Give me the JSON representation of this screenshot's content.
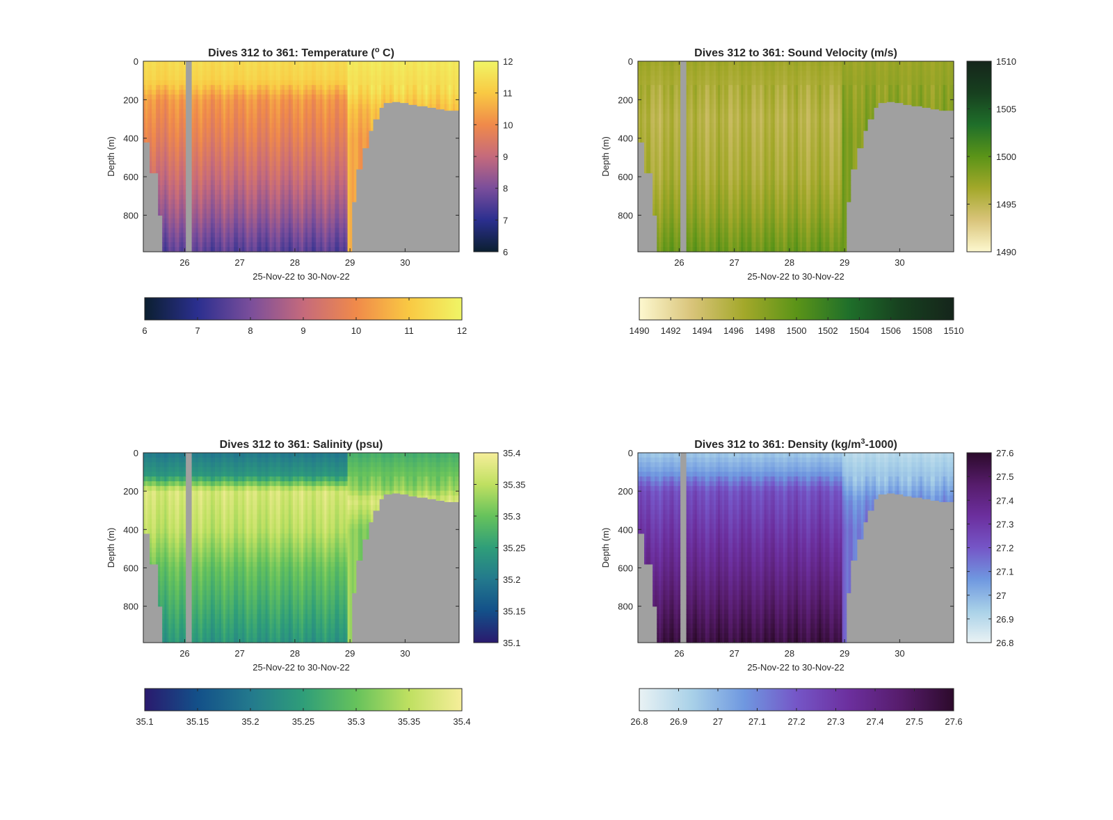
{
  "figure": {
    "background": "#ffffff",
    "mask_color": "#a0a0a0"
  },
  "chart_data": [
    {
      "type": "heatmap",
      "variable": "temperature",
      "title_parts": [
        {
          "text": "Dives 312 to 361: Temperature ("
        },
        {
          "text": "o",
          "sup": true
        },
        {
          "text": " C)"
        }
      ],
      "xlabel": "25-Nov-22 to 30-Nov-22",
      "ylabel": "Depth (m)",
      "x_range": [
        25.25,
        30.98
      ],
      "y_range": [
        0,
        990
      ],
      "x_ticks": [
        26,
        27,
        28,
        29,
        30
      ],
      "y_ticks": [
        0,
        200,
        400,
        600,
        800
      ],
      "clim": [
        6,
        12
      ],
      "colormap": [
        "#0b1f30",
        "#2b2f8f",
        "#7a4e9b",
        "#c56a7c",
        "#f08a4a",
        "#f9c943",
        "#f0f566"
      ],
      "right_colorbar_ticks": [
        6,
        7,
        8,
        9,
        10,
        11,
        12
      ],
      "bottom_colorbar_ticks": [
        6,
        7,
        8,
        9,
        10,
        11,
        12
      ],
      "profile": [
        {
          "z": 0,
          "v": 11.4
        },
        {
          "z": 100,
          "v": 11.2
        },
        {
          "z": 200,
          "v": 10.2
        },
        {
          "z": 400,
          "v": 9.7
        },
        {
          "z": 600,
          "v": 9.1
        },
        {
          "z": 800,
          "v": 8.4
        },
        {
          "z": 980,
          "v": 7.6
        }
      ],
      "late_profile": [
        {
          "z": 0,
          "v": 11.7
        },
        {
          "z": 150,
          "v": 11.4
        },
        {
          "z": 250,
          "v": 10.8
        },
        {
          "z": 400,
          "v": 10.4
        }
      ]
    },
    {
      "type": "heatmap",
      "variable": "sound_velocity",
      "title_parts": [
        {
          "text": "Dives 312 to 361: Sound Velocity (m/s)"
        }
      ],
      "xlabel": "25-Nov-22 to 30-Nov-22",
      "ylabel": "Depth (m)",
      "x_range": [
        25.25,
        30.98
      ],
      "y_range": [
        0,
        990
      ],
      "x_ticks": [
        26,
        27,
        28,
        29,
        30
      ],
      "y_ticks": [
        0,
        200,
        400,
        600,
        800
      ],
      "clim": [
        1490,
        1510
      ],
      "colormap": [
        "#fdf8cf",
        "#d9c47a",
        "#a3a82a",
        "#5b9418",
        "#1f6f2a",
        "#17401f",
        "#15251b"
      ],
      "right_colorbar_ticks": [
        1490,
        1495,
        1500,
        1505,
        1510
      ],
      "bottom_colorbar_ticks": [
        1490,
        1492,
        1494,
        1496,
        1498,
        1500,
        1502,
        1504,
        1506,
        1508,
        1510
      ],
      "profile": [
        {
          "z": 0,
          "v": 1496.8
        },
        {
          "z": 150,
          "v": 1496.0
        },
        {
          "z": 300,
          "v": 1495.4
        },
        {
          "z": 600,
          "v": 1496.2
        },
        {
          "z": 800,
          "v": 1497.5
        },
        {
          "z": 980,
          "v": 1499.2
        }
      ],
      "late_profile": [
        {
          "z": 0,
          "v": 1497.0
        },
        {
          "z": 200,
          "v": 1497.6
        },
        {
          "z": 400,
          "v": 1498.2
        }
      ]
    },
    {
      "type": "heatmap",
      "variable": "salinity",
      "title_parts": [
        {
          "text": "Dives 312 to 361: Salinity (psu)"
        }
      ],
      "xlabel": "25-Nov-22 to 30-Nov-22",
      "ylabel": "Depth (m)",
      "x_range": [
        25.25,
        30.98
      ],
      "y_range": [
        0,
        990
      ],
      "x_ticks": [
        26,
        27,
        28,
        29,
        30
      ],
      "y_ticks": [
        0,
        200,
        400,
        600,
        800
      ],
      "clim": [
        35.1,
        35.4
      ],
      "colormap": [
        "#2a1a6e",
        "#135089",
        "#23798d",
        "#2f9e79",
        "#66c25c",
        "#bfe061",
        "#f6ee9a"
      ],
      "right_colorbar_ticks": [
        35.1,
        35.15,
        35.2,
        35.25,
        35.3,
        35.35,
        35.4
      ],
      "bottom_colorbar_ticks": [
        35.1,
        35.15,
        35.2,
        35.25,
        35.3,
        35.35,
        35.4
      ],
      "profile": [
        {
          "z": 0,
          "v": 35.2
        },
        {
          "z": 120,
          "v": 35.24
        },
        {
          "z": 200,
          "v": 35.37
        },
        {
          "z": 400,
          "v": 35.35
        },
        {
          "z": 600,
          "v": 35.3
        },
        {
          "z": 800,
          "v": 35.27
        },
        {
          "z": 980,
          "v": 35.24
        }
      ],
      "late_profile": [
        {
          "z": 0,
          "v": 35.27
        },
        {
          "z": 180,
          "v": 35.32
        },
        {
          "z": 250,
          "v": 35.37
        },
        {
          "z": 400,
          "v": 35.32
        }
      ]
    },
    {
      "type": "heatmap",
      "variable": "density",
      "title_parts": [
        {
          "text": "Dives 312 to 361: Density (kg/m"
        },
        {
          "text": "3",
          "sup": true
        },
        {
          "text": "-1000)"
        }
      ],
      "xlabel": "25-Nov-22 to 30-Nov-22",
      "ylabel": "Depth (m)",
      "x_range": [
        25.25,
        30.98
      ],
      "y_range": [
        0,
        990
      ],
      "x_ticks": [
        26,
        27,
        28,
        29,
        30
      ],
      "y_ticks": [
        0,
        200,
        400,
        600,
        800
      ],
      "clim": [
        26.8,
        27.6
      ],
      "colormap": [
        "#e9f2f4",
        "#a9d1e8",
        "#6f98e0",
        "#7556c7",
        "#6c2f9e",
        "#561c6b",
        "#2c0a2b"
      ],
      "right_colorbar_ticks": [
        27.6,
        27.5,
        27.4,
        27.3,
        27.2,
        27.1,
        27,
        26.9,
        26.8
      ],
      "bottom_colorbar_ticks": [
        26.8,
        26.9,
        27,
        27.1,
        27.2,
        27.3,
        27.4,
        27.5,
        27.6
      ],
      "profile": [
        {
          "z": 0,
          "v": 26.95
        },
        {
          "z": 100,
          "v": 27.05
        },
        {
          "z": 200,
          "v": 27.22
        },
        {
          "z": 400,
          "v": 27.3
        },
        {
          "z": 600,
          "v": 27.38
        },
        {
          "z": 800,
          "v": 27.47
        },
        {
          "z": 980,
          "v": 27.55
        }
      ],
      "late_profile": [
        {
          "z": 0,
          "v": 26.9
        },
        {
          "z": 150,
          "v": 26.98
        },
        {
          "z": 250,
          "v": 27.08
        },
        {
          "z": 400,
          "v": 27.14
        }
      ]
    }
  ]
}
